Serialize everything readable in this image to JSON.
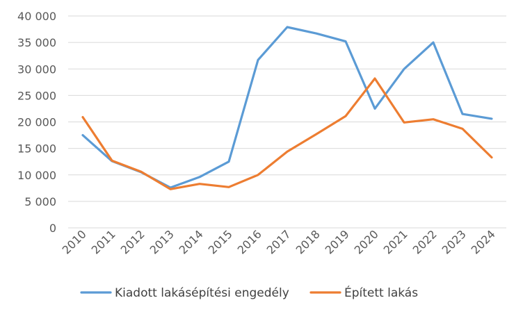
{
  "chart_data": {
    "type": "line",
    "x": [
      "2010",
      "2011",
      "2012",
      "2013",
      "2014",
      "2015",
      "2016",
      "2017",
      "2018",
      "2019",
      "2020",
      "2021",
      "2022",
      "2023",
      "2024"
    ],
    "series": [
      {
        "name": "Kiadott lakásépítési engedély",
        "color": "#5B9BD5",
        "values": [
          17500,
          12600,
          10500,
          7600,
          9600,
          12500,
          31700,
          37900,
          36700,
          35200,
          22500,
          30000,
          35000,
          21500,
          20600
        ]
      },
      {
        "name": "Épített lakás",
        "color": "#ED7D31",
        "values": [
          20900,
          12700,
          10600,
          7300,
          8300,
          7700,
          10000,
          14400,
          17700,
          21100,
          28200,
          19900,
          20500,
          18700,
          13300
        ]
      }
    ],
    "ylim": [
      0,
      40000
    ],
    "yticks": [
      {
        "value": 0,
        "label": "0"
      },
      {
        "value": 5000,
        "label": "5 000"
      },
      {
        "value": 10000,
        "label": "10 000"
      },
      {
        "value": 15000,
        "label": "15 000"
      },
      {
        "value": 20000,
        "label": "20 000"
      },
      {
        "value": 25000,
        "label": "25 000"
      },
      {
        "value": 30000,
        "label": "30 000"
      },
      {
        "value": 35000,
        "label": "35 000"
      },
      {
        "value": 40000,
        "label": "40 000"
      }
    ],
    "grid": true,
    "legend_position": "bottom"
  }
}
